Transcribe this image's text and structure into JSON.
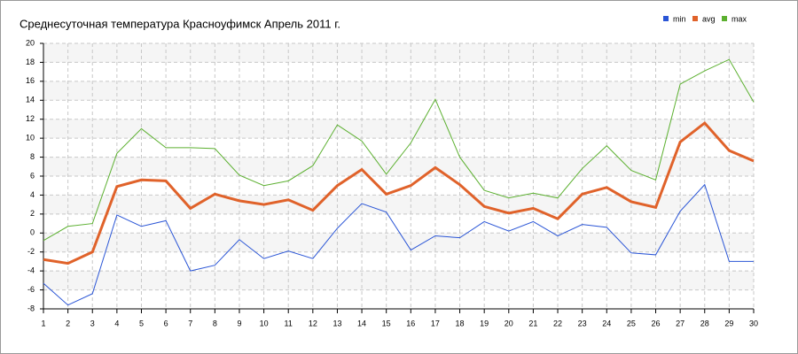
{
  "chart_data": {
    "type": "line",
    "title": "Среднесуточная температура Красноуфимск  Апрель 2011 г.",
    "x": [
      1,
      2,
      3,
      4,
      5,
      6,
      7,
      8,
      9,
      10,
      11,
      12,
      13,
      14,
      15,
      16,
      17,
      18,
      19,
      20,
      21,
      22,
      23,
      24,
      25,
      26,
      27,
      28,
      29,
      30
    ],
    "series": [
      {
        "name": "min",
        "color": "#2a55d6",
        "values": [
          -5.3,
          -7.6,
          -6.4,
          1.9,
          0.7,
          1.3,
          -4.0,
          -3.4,
          -0.7,
          -2.7,
          -1.9,
          -2.7,
          0.5,
          3.1,
          2.2,
          -1.8,
          -0.3,
          -0.5,
          1.2,
          0.2,
          1.2,
          -0.3,
          0.9,
          0.6,
          -2.1,
          -2.3,
          2.3,
          5.1,
          -3.0,
          -3.0
        ]
      },
      {
        "name": "avg",
        "color": "#e0622a",
        "values": [
          -2.8,
          -3.2,
          -2.0,
          4.9,
          5.6,
          5.5,
          2.6,
          4.1,
          3.4,
          3.0,
          3.5,
          2.4,
          5.0,
          6.7,
          4.1,
          5.0,
          6.9,
          5.1,
          2.8,
          2.1,
          2.6,
          1.5,
          4.1,
          4.8,
          3.3,
          2.7,
          9.6,
          11.6,
          8.7,
          7.6
        ]
      },
      {
        "name": "max",
        "color": "#5cb030",
        "values": [
          -0.8,
          0.7,
          1.0,
          8.4,
          11.0,
          9.0,
          9.0,
          8.9,
          6.1,
          5.0,
          5.5,
          7.1,
          11.4,
          9.7,
          6.2,
          9.5,
          14.1,
          8.0,
          4.5,
          3.7,
          4.2,
          3.7,
          6.8,
          9.2,
          6.6,
          5.6,
          15.7,
          17.1,
          18.3,
          13.8
        ]
      }
    ],
    "xlim": [
      1,
      30
    ],
    "xticks": [
      1,
      2,
      3,
      4,
      5,
      6,
      7,
      8,
      9,
      10,
      11,
      12,
      13,
      14,
      15,
      16,
      17,
      18,
      19,
      20,
      21,
      22,
      23,
      24,
      25,
      26,
      27,
      28,
      29,
      30
    ],
    "ylim": [
      -8,
      20
    ],
    "yticks": [
      -8,
      -6,
      -4,
      -2,
      0,
      2,
      4,
      6,
      8,
      10,
      12,
      14,
      16,
      18,
      20
    ],
    "grid": true,
    "legend": "top-right"
  }
}
